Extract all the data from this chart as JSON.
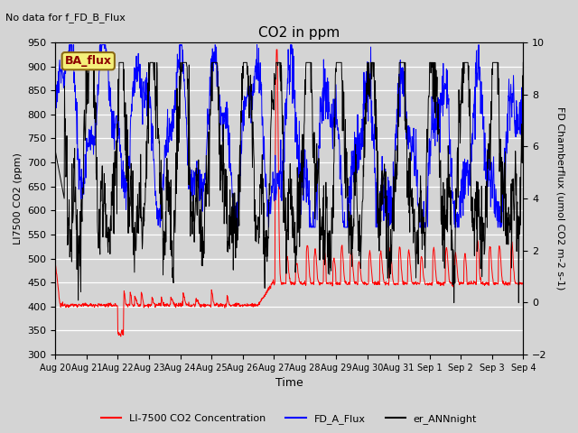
{
  "title": "CO2 in ppm",
  "topleft_text": "No data for f_FD_B_Flux",
  "annotation_text": "BA_flux",
  "xlabel": "Time",
  "ylabel_left": "LI7500 CO2 (ppm)",
  "ylabel_right": "FD Chamberflux (umol CO2 m-2 s-1)",
  "ylim_left": [
    300,
    950
  ],
  "ylim_right": [
    -2,
    10
  ],
  "yticks_left": [
    300,
    350,
    400,
    450,
    500,
    550,
    600,
    650,
    700,
    750,
    800,
    850,
    900,
    950
  ],
  "yticks_right": [
    -2,
    0,
    2,
    4,
    6,
    8,
    10
  ],
  "xtick_labels": [
    "Aug 20",
    "Aug 21",
    "Aug 22",
    "Aug 23",
    "Aug 24",
    "Aug 25",
    "Aug 26",
    "Aug 27",
    "Aug 28",
    "Aug 29",
    "Aug 30",
    "Aug 31",
    "Sep 1",
    "Sep 2",
    "Sep 3",
    "Sep 4"
  ],
  "legend_labels": [
    "LI-7500 CO2 Concentration",
    "FD_A_Flux",
    "er_ANNnight"
  ],
  "line_lw": 0.7,
  "bg_color": "#d4d4d4",
  "figsize": [
    6.4,
    4.8
  ],
  "dpi": 100
}
